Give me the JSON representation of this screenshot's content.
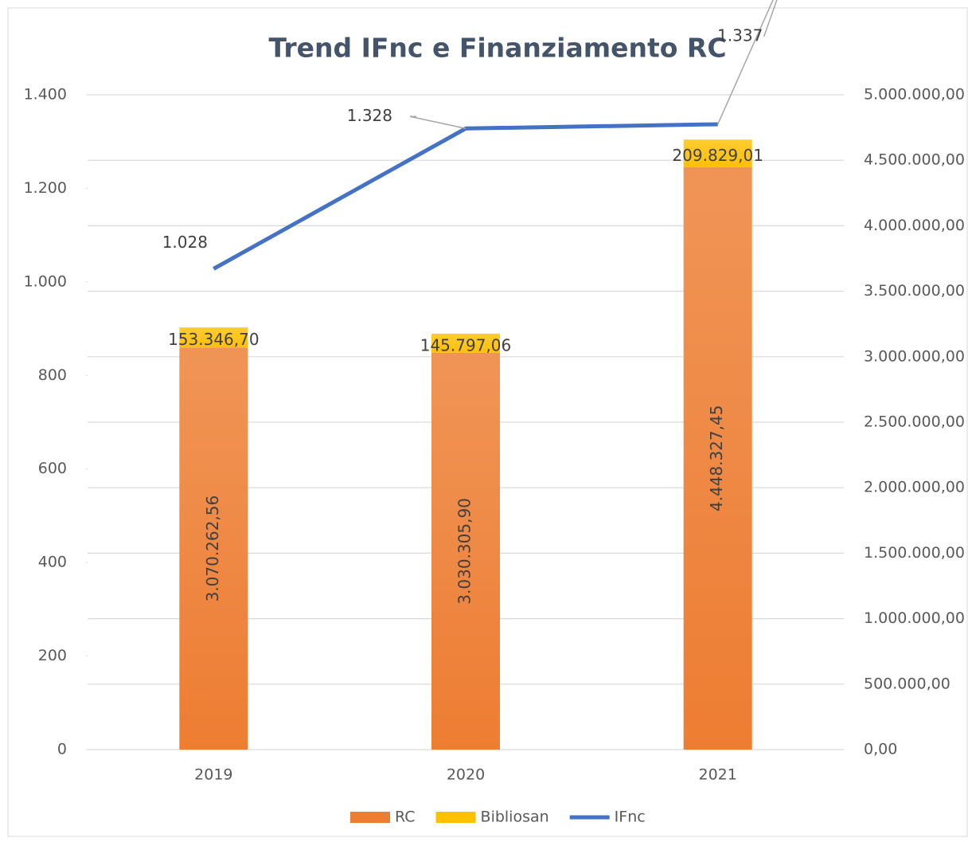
{
  "chart_data": {
    "type": "bar",
    "title": "Trend IFnc e Finanziamento RC",
    "categories": [
      "2019",
      "2020",
      "2021"
    ],
    "series": [
      {
        "name": "RC",
        "color": "#ed7d31",
        "axis": "y2",
        "stacked": true,
        "values": [
          3070262.56,
          3030305.9,
          4448327.45
        ],
        "value_labels": [
          "3.070.262,56",
          "3.030.305,90",
          "4.448.327,45"
        ]
      },
      {
        "name": "Bibliosan",
        "color": "#ffc000",
        "axis": "y2",
        "stacked": true,
        "values": [
          153346.7,
          145797.06,
          209829.01
        ],
        "value_labels": [
          "153.346,70",
          "145.797,06",
          "209.829,01"
        ]
      },
      {
        "name": "IFnc",
        "color": "#4472c4",
        "type": "line",
        "values": [
          1028,
          1328,
          1337
        ],
        "value_labels": [
          "1.028",
          "1.328",
          "1.337"
        ]
      }
    ],
    "ylim": [
      0,
      1400
    ],
    "yticks": [
      0,
      200,
      400,
      600,
      800,
      {
        "value": 1000,
        "label": "1.000"
      },
      {
        "value": 1200,
        "label": "1.200"
      },
      {
        "value": 1400,
        "label": "1.400"
      }
    ],
    "y2lim": [
      0,
      5000000
    ],
    "y2ticks": [
      {
        "value": 0,
        "label": "0,00"
      },
      {
        "value": 500000,
        "label": "500.000,00"
      },
      {
        "value": 1000000,
        "label": "1.000.000,00"
      },
      {
        "value": 1500000,
        "label": "1.500.000,00"
      },
      {
        "value": 2000000,
        "label": "2.000.000,00"
      },
      {
        "value": 2500000,
        "label": "2.500.000,00"
      },
      {
        "value": 3000000,
        "label": "3.000.000,00"
      },
      {
        "value": 3500000,
        "label": "3.500.000,00"
      },
      {
        "value": 4000000,
        "label": "4.000.000,00"
      },
      {
        "value": 4500000,
        "label": "4.500.000,00"
      },
      {
        "value": 5000000,
        "label": "5.000.000,00"
      }
    ],
    "grid": true,
    "legend": "bottom"
  }
}
